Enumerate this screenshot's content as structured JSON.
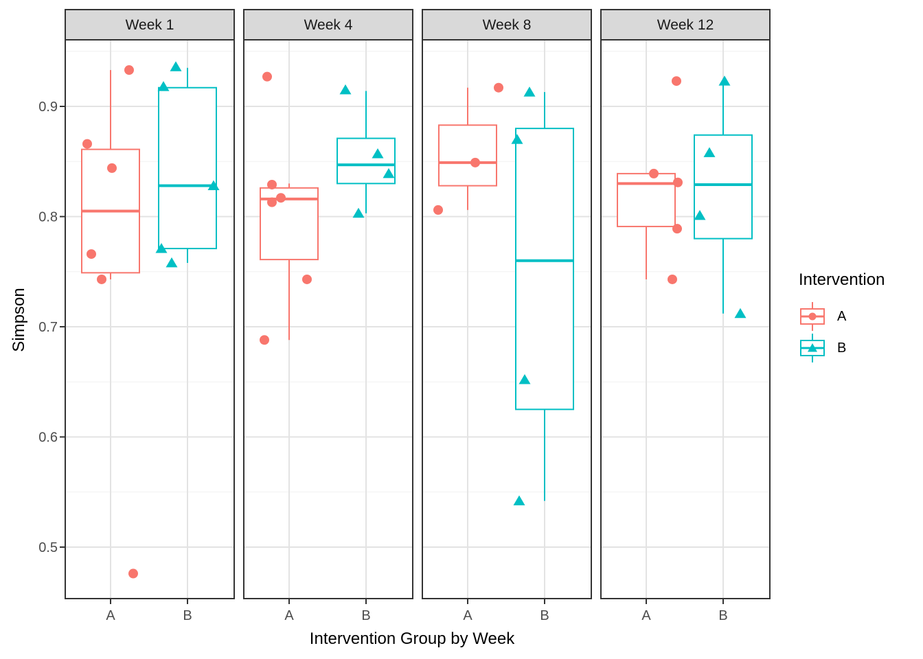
{
  "figure": {
    "y_axis": {
      "title": "Simpson",
      "tick_labels": [
        "0.5",
        "0.6",
        "0.7",
        "0.8",
        "0.9"
      ],
      "tick_values": [
        0.5,
        0.6,
        0.7,
        0.8,
        0.9
      ],
      "minor_values": [
        0.55,
        0.65,
        0.75,
        0.85,
        0.95
      ]
    },
    "x_axis": {
      "title": "Intervention Group by Week",
      "categories": [
        "A",
        "B"
      ]
    },
    "legend": {
      "title": "Intervention",
      "entries": [
        {
          "label": "A",
          "color": "#F8766D",
          "marker": "circle"
        },
        {
          "label": "B",
          "color": "#00BFC4",
          "marker": "triangle"
        }
      ]
    },
    "colors": {
      "strip_bg": "#D9D9D9",
      "panel_bg": "#FFFFFF",
      "panel_border": "#333333",
      "grid_major": "#E3E3E3",
      "grid_minor": "#F1F1F1",
      "axis_text": "#4D4D4D",
      "strip_text": "#1A1A1A"
    }
  },
  "chart_data": {
    "type": "boxplot",
    "title": "",
    "xlabel": "Intervention Group by Week",
    "ylabel": "Simpson",
    "ylim_shown": [
      0.453,
      0.96
    ],
    "legend_position": "right",
    "grid": true,
    "facets": [
      {
        "label": "Week 1",
        "groups": [
          {
            "group": "A",
            "series": "A",
            "stats": {
              "whisker_low": 0.743,
              "q1": 0.749,
              "median": 0.805,
              "q3": 0.861,
              "whisker_high": 0.933
            },
            "points": [
              {
                "dx": 27,
                "v": 0.933
              },
              {
                "dx": -34,
                "v": 0.866
              },
              {
                "dx": 2,
                "v": 0.844
              },
              {
                "dx": -28,
                "v": 0.766
              },
              {
                "dx": -13,
                "v": 0.743
              },
              {
                "dx": 33,
                "v": 0.476
              }
            ]
          },
          {
            "group": "B",
            "series": "B",
            "stats": {
              "whisker_low": 0.758,
              "q1": 0.771,
              "median": 0.828,
              "q3": 0.917,
              "whisker_high": 0.935
            },
            "points": [
              {
                "dx": -17,
                "v": 0.936
              },
              {
                "dx": -35,
                "v": 0.918
              },
              {
                "dx": 38,
                "v": 0.828
              },
              {
                "dx": -38,
                "v": 0.771
              },
              {
                "dx": -23,
                "v": 0.758
              }
            ]
          }
        ]
      },
      {
        "label": "Week 4",
        "groups": [
          {
            "group": "A",
            "series": "A",
            "stats": {
              "whisker_low": 0.688,
              "q1": 0.761,
              "median": 0.816,
              "q3": 0.826,
              "whisker_high": 0.83
            },
            "points": [
              {
                "dx": -32,
                "v": 0.927
              },
              {
                "dx": -25,
                "v": 0.829
              },
              {
                "dx": -12,
                "v": 0.817
              },
              {
                "dx": -25,
                "v": 0.813
              },
              {
                "dx": 26,
                "v": 0.743
              },
              {
                "dx": -36,
                "v": 0.688
              }
            ]
          },
          {
            "group": "B",
            "series": "B",
            "stats": {
              "whisker_low": 0.803,
              "q1": 0.83,
              "median": 0.847,
              "q3": 0.871,
              "whisker_high": 0.914
            },
            "points": [
              {
                "dx": -30,
                "v": 0.915
              },
              {
                "dx": 17,
                "v": 0.857
              },
              {
                "dx": 33,
                "v": 0.839
              },
              {
                "dx": -11,
                "v": 0.803
              }
            ]
          }
        ]
      },
      {
        "label": "Week 8",
        "groups": [
          {
            "group": "A",
            "series": "A",
            "stats": {
              "whisker_low": 0.806,
              "q1": 0.828,
              "median": 0.849,
              "q3": 0.883,
              "whisker_high": 0.917
            },
            "points": [
              {
                "dx": 45,
                "v": 0.917
              },
              {
                "dx": 11,
                "v": 0.849
              },
              {
                "dx": -43,
                "v": 0.806
              }
            ]
          },
          {
            "group": "B",
            "series": "B",
            "stats": {
              "whisker_low": 0.542,
              "q1": 0.625,
              "median": 0.76,
              "q3": 0.88,
              "whisker_high": 0.913
            },
            "points": [
              {
                "dx": -22,
                "v": 0.913
              },
              {
                "dx": -40,
                "v": 0.87
              },
              {
                "dx": -29,
                "v": 0.652
              },
              {
                "dx": -37,
                "v": 0.542
              }
            ]
          }
        ]
      },
      {
        "label": "Week 12",
        "groups": [
          {
            "group": "A",
            "series": "A",
            "stats": {
              "whisker_low": 0.743,
              "q1": 0.791,
              "median": 0.83,
              "q3": 0.839,
              "whisker_high": 0.839
            },
            "points": [
              {
                "dx": 44,
                "v": 0.923
              },
              {
                "dx": 11,
                "v": 0.839
              },
              {
                "dx": 46,
                "v": 0.831
              },
              {
                "dx": 45,
                "v": 0.789
              },
              {
                "dx": 38,
                "v": 0.743
              }
            ]
          },
          {
            "group": "B",
            "series": "B",
            "stats": {
              "whisker_low": 0.712,
              "q1": 0.78,
              "median": 0.829,
              "q3": 0.874,
              "whisker_high": 0.921
            },
            "points": [
              {
                "dx": 2,
                "v": 0.923
              },
              {
                "dx": -20,
                "v": 0.858
              },
              {
                "dx": -34,
                "v": 0.801
              },
              {
                "dx": 25,
                "v": 0.712
              }
            ]
          }
        ]
      }
    ]
  }
}
